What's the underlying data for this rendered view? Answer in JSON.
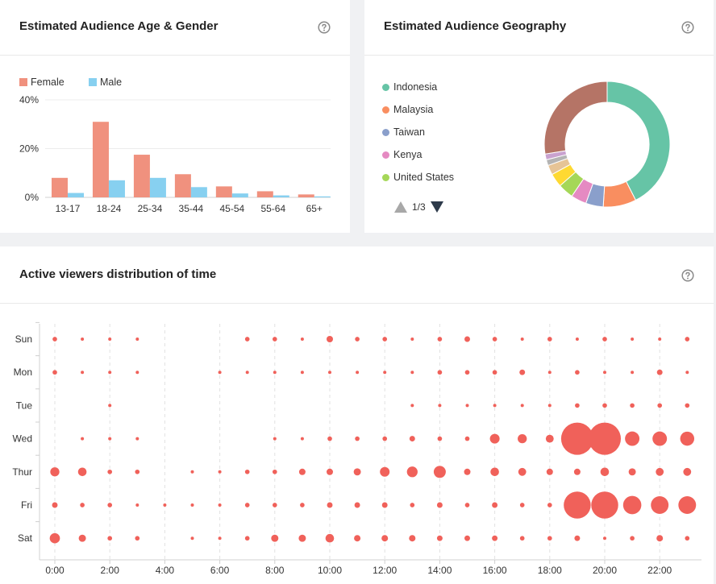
{
  "age_card": {
    "title": "Estimated Audience Age & Gender",
    "help_icon": "question-circle-icon"
  },
  "geo_card": {
    "title": "Estimated Audience Geography",
    "help_icon": "question-circle-icon",
    "pager": {
      "label": "1/3",
      "prev_icon": "triangle-up-icon",
      "next_icon": "triangle-down-icon"
    }
  },
  "time_card": {
    "title": "Active viewers distribution of time",
    "help_icon": "question-circle-icon"
  },
  "chart_data": [
    {
      "type": "bar",
      "categories": [
        "13-17",
        "18-24",
        "25-34",
        "35-44",
        "45-54",
        "55-64",
        "65+"
      ],
      "series": [
        {
          "name": "Female",
          "color": "#f0917e",
          "values": [
            8,
            31,
            17.5,
            9.5,
            4.5,
            2.5,
            1.2
          ]
        },
        {
          "name": "Male",
          "color": "#87d0f0",
          "values": [
            1.8,
            7,
            8,
            4.2,
            1.6,
            0.8,
            0.4
          ]
        }
      ],
      "yticks": [
        "0%",
        "20%",
        "40%"
      ],
      "ylim": [
        0,
        40
      ],
      "legend_position": "top-left",
      "grid": true
    },
    {
      "type": "pie",
      "variant": "donut",
      "legend": [
        {
          "name": "Indonesia",
          "color": "#66c4a6"
        },
        {
          "name": "Malaysia",
          "color": "#f98e60"
        },
        {
          "name": "Taiwan",
          "color": "#8a9fcb"
        },
        {
          "name": "Kenya",
          "color": "#e58ac2"
        },
        {
          "name": "United States",
          "color": "#a5d758"
        }
      ],
      "slices": [
        {
          "value": 42.5,
          "color": "#66c4a6"
        },
        {
          "value": 8.5,
          "color": "#f98e60"
        },
        {
          "value": 4.5,
          "color": "#8a9fcb"
        },
        {
          "value": 4,
          "color": "#e58ac2"
        },
        {
          "value": 4,
          "color": "#a5d758"
        },
        {
          "value": 3.5,
          "color": "#fed932"
        },
        {
          "value": 2.5,
          "color": "#e6c496"
        },
        {
          "value": 1.5,
          "color": "#b4b4b4"
        },
        {
          "value": 1.5,
          "color": "#c9a2cf"
        },
        {
          "value": 27.5,
          "color": "#b57466"
        }
      ]
    },
    {
      "type": "scatter",
      "variant": "bubble",
      "color": "#f0615a",
      "days": [
        "Sun",
        "Mon",
        "Tue",
        "Wed",
        "Thur",
        "Fri",
        "Sat"
      ],
      "hours": [
        0,
        1,
        2,
        3,
        4,
        5,
        6,
        7,
        8,
        9,
        10,
        11,
        12,
        13,
        14,
        15,
        16,
        17,
        18,
        19,
        20,
        21,
        22,
        23
      ],
      "xticks": [
        "0:00",
        "2:00",
        "4:00",
        "6:00",
        "8:00",
        "10:00",
        "12:00",
        "14:00",
        "16:00",
        "18:00",
        "20:00",
        "22:00"
      ],
      "values": [
        [
          2,
          1,
          1,
          1,
          0,
          0,
          0,
          2,
          2,
          1,
          4,
          2,
          2,
          1,
          2,
          3,
          2,
          1,
          2,
          1,
          2,
          1,
          1,
          2
        ],
        [
          2,
          1,
          1,
          1,
          0,
          0,
          1,
          1,
          1,
          1,
          1,
          1,
          1,
          1,
          2,
          2,
          2,
          3,
          1,
          2,
          1,
          1,
          3,
          1
        ],
        [
          0,
          0,
          1,
          0,
          0,
          0,
          0,
          0,
          0,
          0,
          0,
          0,
          0,
          1,
          1,
          1,
          1,
          1,
          1,
          2,
          2,
          2,
          2,
          2
        ],
        [
          0,
          1,
          1,
          1,
          0,
          0,
          0,
          0,
          1,
          1,
          2,
          2,
          2,
          3,
          2,
          2,
          9,
          8,
          6,
          100,
          100,
          20,
          20,
          19
        ],
        [
          8,
          7,
          2,
          2,
          0,
          1,
          1,
          2,
          2,
          4,
          4,
          5,
          9,
          11,
          14,
          4,
          7,
          6,
          4,
          4,
          7,
          5,
          6,
          6
        ],
        [
          3,
          2,
          2,
          1,
          1,
          1,
          1,
          2,
          2,
          2,
          3,
          3,
          3,
          2,
          3,
          2,
          3,
          2,
          2,
          70,
          70,
          32,
          30,
          30
        ],
        [
          10,
          5,
          2,
          2,
          0,
          1,
          1,
          2,
          5,
          5,
          7,
          4,
          4,
          4,
          3,
          3,
          3,
          2,
          2,
          3,
          1,
          2,
          4,
          2
        ]
      ],
      "grid": "dashed-vertical"
    }
  ]
}
